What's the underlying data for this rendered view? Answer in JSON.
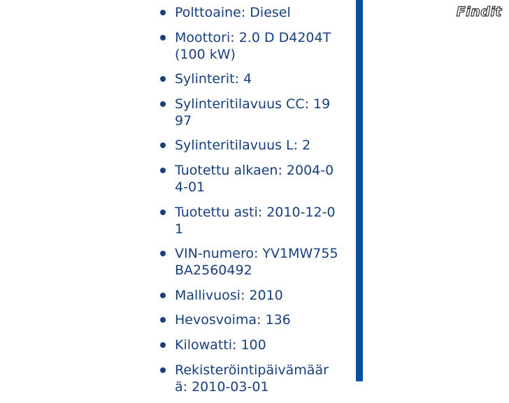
{
  "specs": {
    "items": [
      "Polttoaine: Diesel",
      "Moottori: 2.0 D D4204T (100 kW)",
      "Sylinterit: 4",
      "Sylinteritilavuus CC: 1997",
      "Sylinteritilavuus L: 2",
      "Tuotettu alkaen: 2004-04-01",
      "Tuotettu asti: 2010-12-01",
      "VIN-numero: YV1MW755BA2560492",
      "Mallivuosi: 2010",
      "Hevosvoima: 136",
      "Kilowatti: 100",
      "Rekisteröintipäivämäärä: 2010-03-01"
    ]
  },
  "logo": "Findit"
}
